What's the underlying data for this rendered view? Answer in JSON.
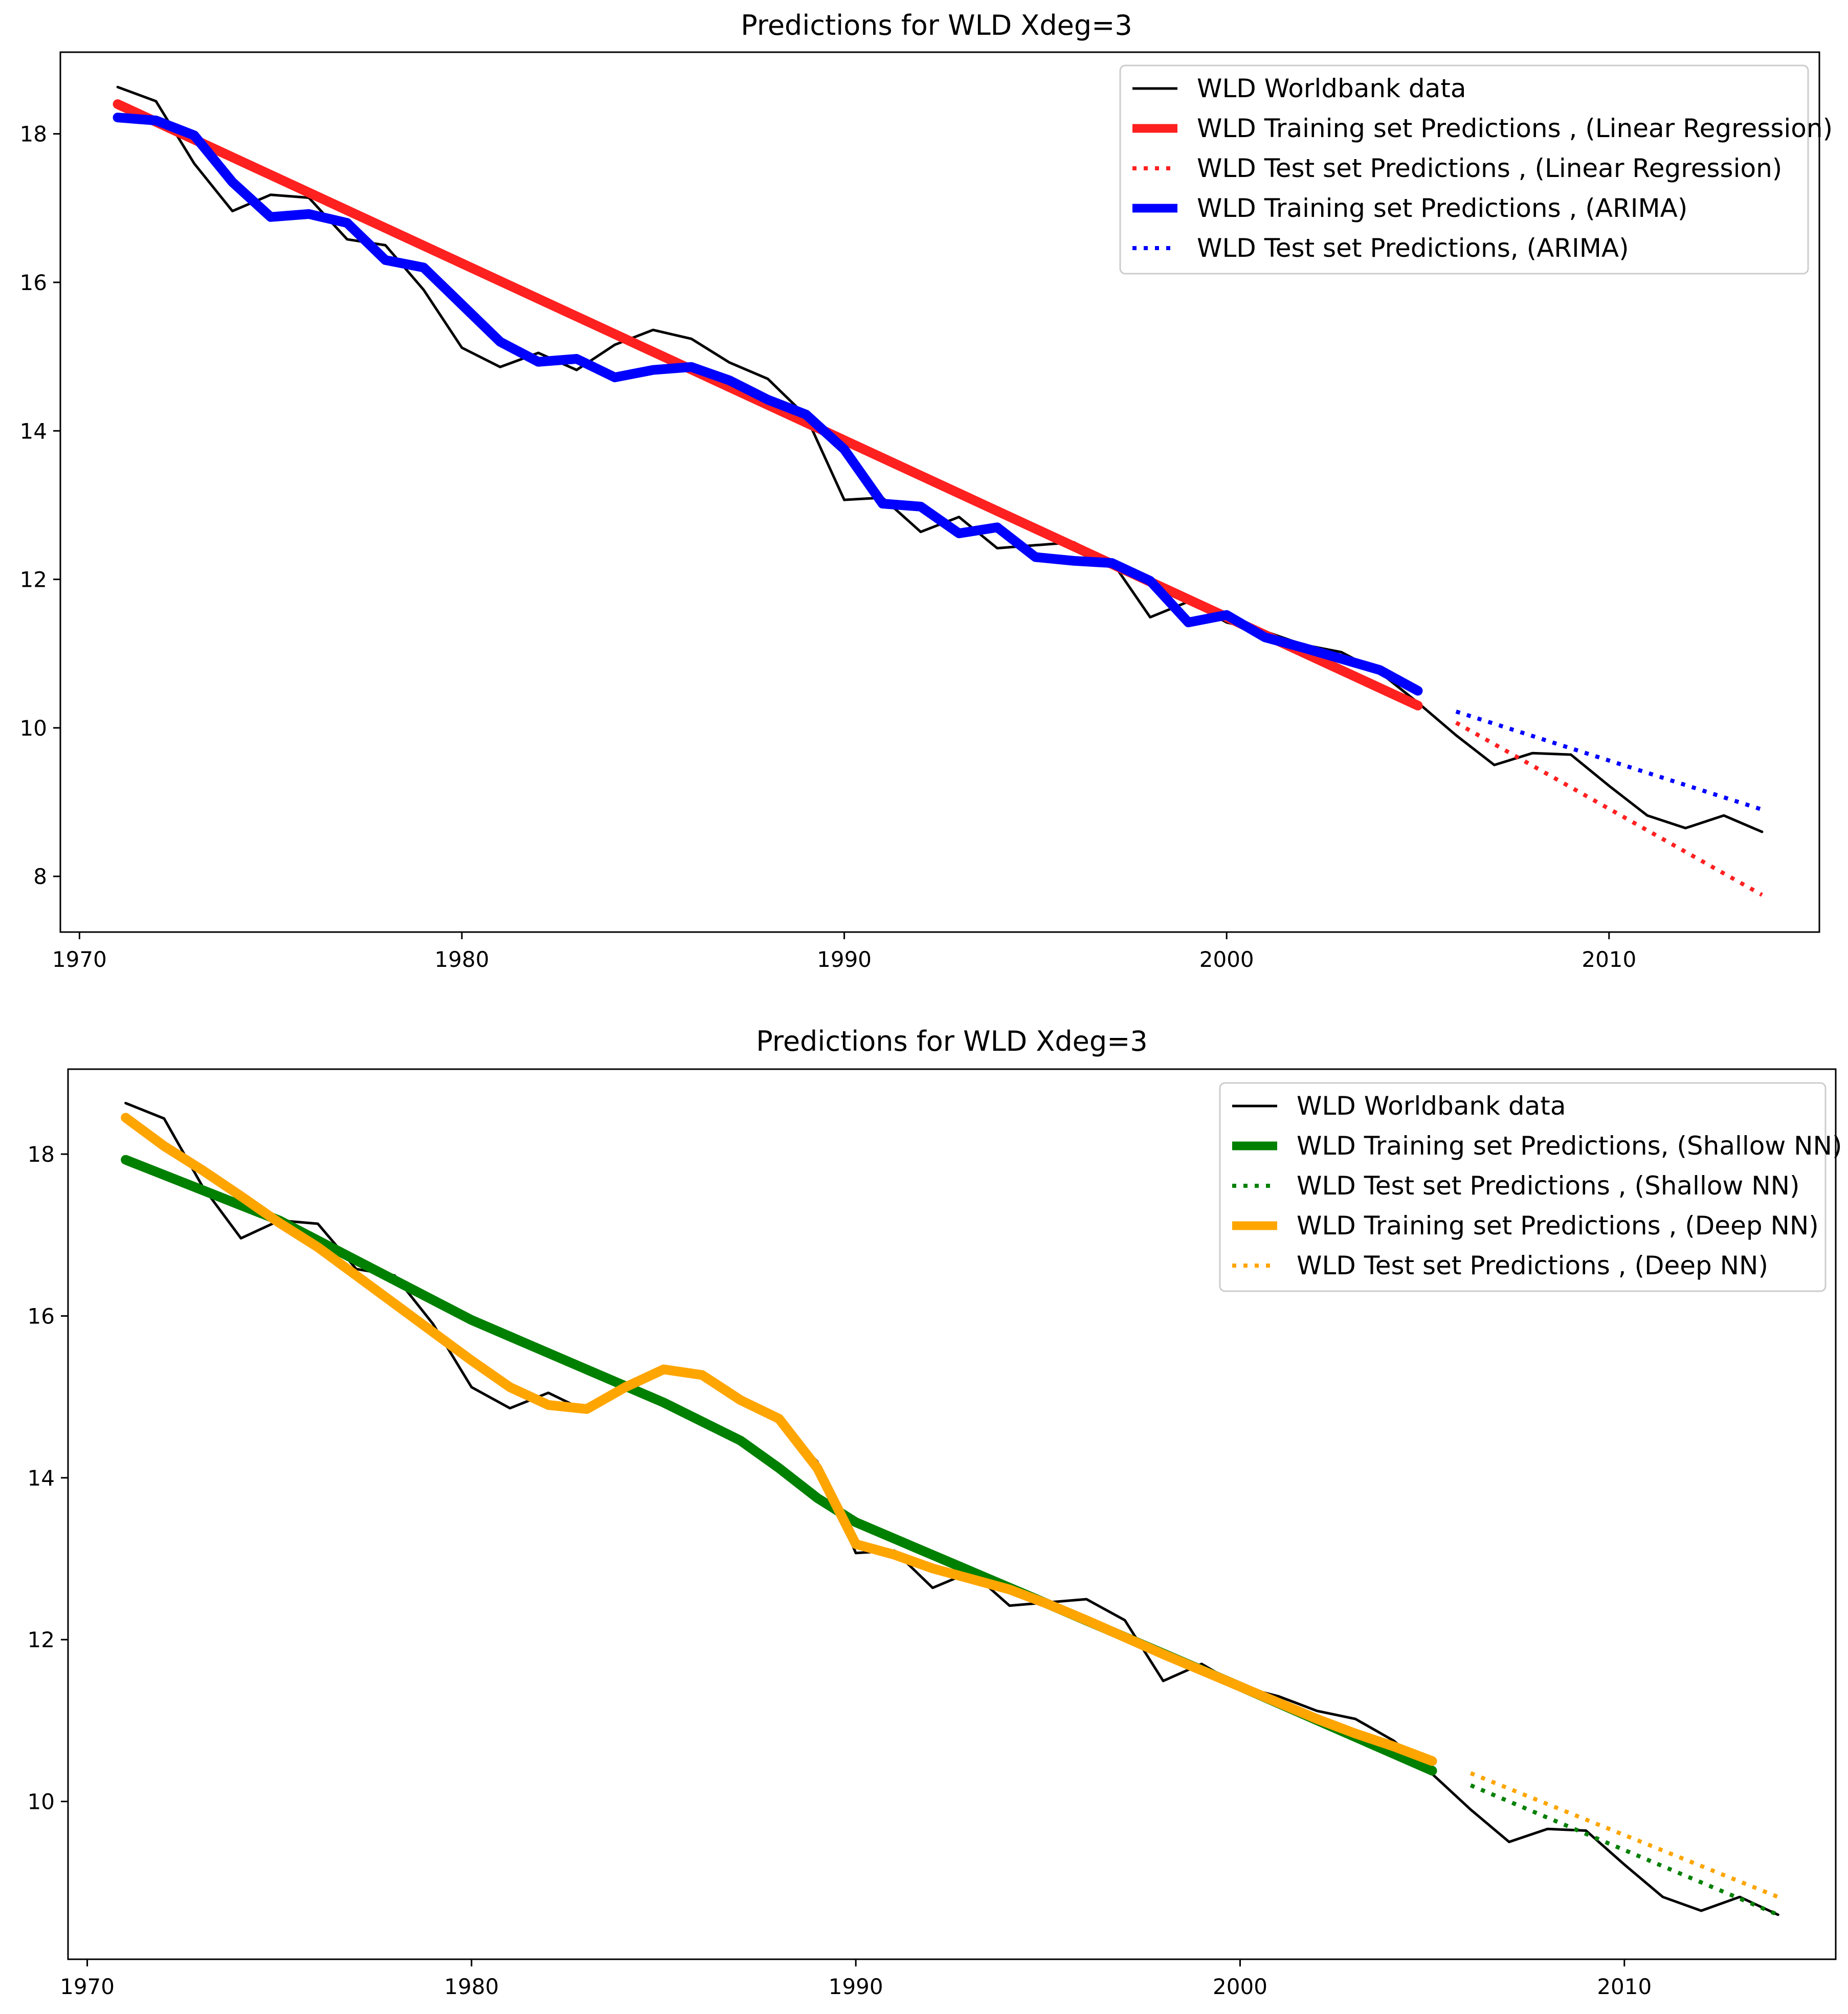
{
  "chart_data": [
    {
      "type": "line",
      "title": "Predictions for WLD  Xdeg=3",
      "xlabel": "",
      "ylabel": "",
      "xlim": [
        1969.5,
        2015.5
      ],
      "ylim": [
        7.25,
        19.1
      ],
      "xticks": [
        1970,
        1980,
        1990,
        2000,
        2010
      ],
      "yticks": [
        8,
        10,
        12,
        14,
        16,
        18
      ],
      "grid": false,
      "legend_position": "upper right",
      "series": [
        {
          "name": "WLD Worldbank data",
          "style": "solid-thin",
          "color": "#000000",
          "x": [
            1971,
            1972,
            1973,
            1974,
            1975,
            1976,
            1977,
            1978,
            1979,
            1980,
            1981,
            1982,
            1983,
            1984,
            1985,
            1986,
            1987,
            1988,
            1989,
            1990,
            1991,
            1992,
            1993,
            1994,
            1995,
            1996,
            1997,
            1998,
            1999,
            2000,
            2001,
            2002,
            2003,
            2004,
            2005,
            2006,
            2007,
            2008,
            2009,
            2010,
            2011,
            2012,
            2013,
            2014
          ],
          "y": [
            18.63,
            18.44,
            17.6,
            16.96,
            17.18,
            17.14,
            16.58,
            16.5,
            15.9,
            15.12,
            14.86,
            15.05,
            14.82,
            15.16,
            15.36,
            15.24,
            14.92,
            14.7,
            14.2,
            13.07,
            13.1,
            12.64,
            12.84,
            12.42,
            12.46,
            12.5,
            12.24,
            11.49,
            11.7,
            11.42,
            11.3,
            11.12,
            11.02,
            10.75,
            10.34,
            9.9,
            9.5,
            9.66,
            9.64,
            9.22,
            8.82,
            8.65,
            8.82,
            8.6
          ]
        },
        {
          "name": "WLD Training set Predictions , (Linear Regression)",
          "style": "solid-thick",
          "color": "#ff2020",
          "x": [
            1971,
            2005
          ],
          "y": [
            18.4,
            10.3
          ]
        },
        {
          "name": "WLD Test set Predictions , (Linear Regression)",
          "style": "dotted",
          "color": "#ff2020",
          "x": [
            2006,
            2014
          ],
          "y": [
            10.07,
            7.75
          ]
        },
        {
          "name": "WLD Training set Predictions , (ARIMA)",
          "style": "solid-thick",
          "color": "#0000ff",
          "x": [
            1971,
            1972,
            1973,
            1974,
            1975,
            1976,
            1977,
            1978,
            1979,
            1980,
            1981,
            1982,
            1983,
            1984,
            1985,
            1986,
            1987,
            1988,
            1989,
            1990,
            1991,
            1992,
            1993,
            1994,
            1995,
            1996,
            1997,
            1998,
            1999,
            2000,
            2001,
            2002,
            2003,
            2004,
            2005
          ],
          "y": [
            18.22,
            18.18,
            17.98,
            17.35,
            16.88,
            16.92,
            16.8,
            16.3,
            16.2,
            15.7,
            15.2,
            14.93,
            14.97,
            14.72,
            14.82,
            14.86,
            14.68,
            14.42,
            14.22,
            13.75,
            13.02,
            12.98,
            12.62,
            12.7,
            12.3,
            12.25,
            12.22,
            11.98,
            11.42,
            11.52,
            11.22,
            11.08,
            10.93,
            10.78,
            10.5
          ]
        },
        {
          "name": "WLD Test set Predictions, (ARIMA)",
          "style": "dotted",
          "color": "#0000ff",
          "x": [
            2006,
            2014
          ],
          "y": [
            10.22,
            8.9
          ]
        }
      ]
    },
    {
      "type": "line",
      "title": "Predictions for WLD  Xdeg=3",
      "xlabel": "",
      "ylabel": "",
      "xlim": [
        1969.5,
        2015.5
      ],
      "ylim": [
        8.05,
        19.05
      ],
      "xticks": [
        1970,
        1980,
        1990,
        2000,
        2010
      ],
      "yticks": [
        10,
        12,
        14,
        16,
        18
      ],
      "grid": false,
      "legend_position": "upper right",
      "series": [
        {
          "name": "WLD Worldbank data",
          "style": "solid-thin",
          "color": "#000000",
          "x": [
            1971,
            1972,
            1973,
            1974,
            1975,
            1976,
            1977,
            1978,
            1979,
            1980,
            1981,
            1982,
            1983,
            1984,
            1985,
            1986,
            1987,
            1988,
            1989,
            1990,
            1991,
            1992,
            1993,
            1994,
            1995,
            1996,
            1997,
            1998,
            1999,
            2000,
            2001,
            2002,
            2003,
            2004,
            2005,
            2006,
            2007,
            2008,
            2009,
            2010,
            2011,
            2012,
            2013,
            2014
          ],
          "y": [
            18.63,
            18.44,
            17.6,
            16.96,
            17.18,
            17.14,
            16.58,
            16.5,
            15.9,
            15.12,
            14.86,
            15.05,
            14.82,
            15.16,
            15.36,
            15.24,
            14.92,
            14.7,
            14.2,
            13.07,
            13.1,
            12.64,
            12.84,
            12.42,
            12.46,
            12.5,
            12.24,
            11.49,
            11.7,
            11.42,
            11.3,
            11.12,
            11.02,
            10.75,
            10.34,
            9.9,
            9.5,
            9.66,
            9.64,
            9.22,
            8.82,
            8.65,
            8.82,
            8.6
          ]
        },
        {
          "name": "WLD Training set Predictions, (Shallow NN)",
          "style": "solid-thick",
          "color": "#008000",
          "x": [
            1971,
            1975,
            1980,
            1985,
            1987,
            1988,
            1989,
            1990,
            1995,
            2000,
            2005
          ],
          "y": [
            17.93,
            17.18,
            15.95,
            14.93,
            14.46,
            14.12,
            13.75,
            13.45,
            12.44,
            11.42,
            10.38
          ]
        },
        {
          "name": "WLD Test set Predictions , (Shallow NN)",
          "style": "dotted",
          "color": "#008000",
          "x": [
            2006,
            2014
          ],
          "y": [
            10.2,
            8.6
          ]
        },
        {
          "name": "WLD Training set Predictions , (Deep NN)",
          "style": "solid-thick",
          "color": "#ffa500",
          "x": [
            1971,
            1972,
            1973,
            1974,
            1975,
            1976,
            1977,
            1978,
            1979,
            1980,
            1981,
            1982,
            1983,
            1984,
            1985,
            1986,
            1987,
            1988,
            1989,
            1990,
            1991,
            1992,
            1993,
            1994,
            1995,
            1996,
            1997,
            1998,
            1999,
            2000,
            2001,
            2002,
            2003,
            2004,
            2005
          ],
          "y": [
            18.45,
            18.1,
            17.8,
            17.48,
            17.15,
            16.85,
            16.5,
            16.15,
            15.8,
            15.45,
            15.12,
            14.9,
            14.85,
            15.12,
            15.34,
            15.27,
            14.96,
            14.73,
            14.12,
            13.18,
            13.05,
            12.88,
            12.75,
            12.62,
            12.44,
            12.24,
            12.03,
            11.82,
            11.62,
            11.42,
            11.22,
            11.02,
            10.84,
            10.68,
            10.5
          ]
        },
        {
          "name": "WLD Test set Predictions , (Deep NN)",
          "style": "dotted",
          "color": "#ffa500",
          "x": [
            2006,
            2014
          ],
          "y": [
            10.35,
            8.82
          ]
        }
      ]
    }
  ]
}
